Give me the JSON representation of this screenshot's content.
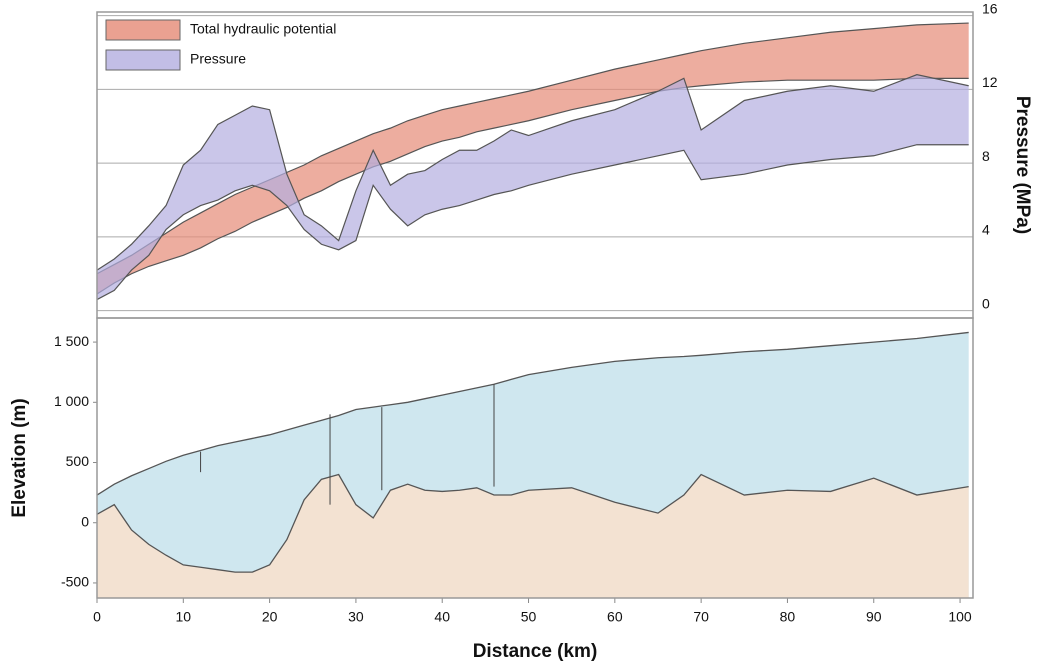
{
  "chart_data": [
    {
      "type": "range",
      "y2label": "Pressure (MPa)",
      "x": [
        0,
        2,
        4,
        6,
        8,
        10,
        12,
        14,
        16,
        18,
        20,
        22,
        24,
        26,
        28,
        30,
        32,
        34,
        36,
        38,
        40,
        42,
        44,
        46,
        48,
        50,
        55,
        60,
        65,
        68,
        70,
        75,
        80,
        85,
        90,
        95,
        101
      ],
      "xlim": [
        0,
        101.5
      ],
      "y2lim": [
        -0.4,
        16.2
      ],
      "y2ticks": [
        0,
        4,
        8,
        12,
        16
      ],
      "grid": true,
      "legend": "top-left",
      "series": [
        {
          "name": "Total hydraulic potential",
          "color": "#e58a76",
          "axis": "y2",
          "high": [
            2.0,
            2.5,
            3.0,
            3.6,
            4.2,
            4.8,
            5.3,
            5.8,
            6.3,
            6.7,
            7.1,
            7.5,
            7.9,
            8.4,
            8.8,
            9.2,
            9.6,
            9.9,
            10.3,
            10.6,
            10.9,
            11.1,
            11.3,
            11.5,
            11.7,
            11.9,
            12.5,
            13.1,
            13.6,
            13.9,
            14.1,
            14.5,
            14.8,
            15.1,
            15.3,
            15.5,
            15.6
          ],
          "low": [
            0.9,
            1.5,
            2.0,
            2.4,
            2.7,
            3.0,
            3.4,
            3.9,
            4.3,
            4.8,
            5.2,
            5.6,
            6.1,
            6.5,
            7.0,
            7.4,
            7.8,
            8.1,
            8.5,
            8.9,
            9.2,
            9.4,
            9.7,
            9.9,
            10.1,
            10.3,
            10.9,
            11.4,
            11.9,
            12.1,
            12.2,
            12.4,
            12.5,
            12.5,
            12.5,
            12.6,
            12.6
          ]
        },
        {
          "name": "Pressure",
          "color": "#b3aee0",
          "axis": "y2",
          "high": [
            2.2,
            2.8,
            3.6,
            4.6,
            5.7,
            7.9,
            8.7,
            10.1,
            10.6,
            11.1,
            10.9,
            7.4,
            5.2,
            4.6,
            3.8,
            6.5,
            8.7,
            6.8,
            7.4,
            7.6,
            8.2,
            8.7,
            8.7,
            9.2,
            9.8,
            9.5,
            10.3,
            10.9,
            11.9,
            12.6,
            9.8,
            11.4,
            11.9,
            12.2,
            11.9,
            12.8,
            12.2
          ],
          "low": [
            0.6,
            1.1,
            2.2,
            3.0,
            4.4,
            5.2,
            5.7,
            6.0,
            6.5,
            6.8,
            6.5,
            5.7,
            4.4,
            3.6,
            3.3,
            3.8,
            6.8,
            5.5,
            4.6,
            5.2,
            5.5,
            5.7,
            6.0,
            6.3,
            6.5,
            6.8,
            7.4,
            7.9,
            8.4,
            8.7,
            7.1,
            7.4,
            7.9,
            8.2,
            8.4,
            9.0,
            9.0
          ]
        }
      ]
    },
    {
      "type": "area",
      "xlabel": "Distance (km)",
      "ylabel": "Elevation (m)",
      "x": [
        0,
        2,
        4,
        6,
        8,
        10,
        12,
        14,
        16,
        18,
        20,
        22,
        24,
        26,
        28,
        30,
        32,
        34,
        36,
        38,
        40,
        42,
        44,
        46,
        48,
        50,
        55,
        60,
        65,
        68,
        70,
        75,
        80,
        85,
        90,
        95,
        101
      ],
      "xlim": [
        0,
        101.5
      ],
      "xticks": [
        0,
        10,
        20,
        30,
        40,
        50,
        60,
        70,
        80,
        90,
        100
      ],
      "ylim": [
        -625,
        1700
      ],
      "yticks": [
        {
          "value": 1500,
          "label": "1 500"
        },
        {
          "value": 1000,
          "label": "1 000"
        },
        500,
        0,
        -500
      ],
      "series": [
        {
          "color": "#cfe7ef",
          "values": [
            230,
            320,
            390,
            450,
            510,
            560,
            600,
            640,
            670,
            700,
            730,
            770,
            810,
            850,
            890,
            940,
            960,
            980,
            1000,
            1030,
            1060,
            1090,
            1120,
            1150,
            1190,
            1230,
            1290,
            1340,
            1370,
            1380,
            1390,
            1420,
            1440,
            1470,
            1500,
            1530,
            1580
          ]
        },
        {
          "color": "#f3e2d2",
          "values": [
            70,
            150,
            -60,
            -180,
            -270,
            -350,
            -370,
            -390,
            -410,
            -410,
            -350,
            -140,
            190,
            360,
            400,
            150,
            40,
            270,
            320,
            270,
            260,
            270,
            290,
            230,
            230,
            270,
            290,
            170,
            80,
            230,
            400,
            230,
            270,
            260,
            370,
            230,
            300
          ]
        }
      ],
      "boreholes": [
        {
          "x": 12,
          "top": 590,
          "bottom": 420
        },
        {
          "x": 27,
          "top": 900,
          "bottom": 150
        },
        {
          "x": 33,
          "top": 960,
          "bottom": 270
        },
        {
          "x": 46,
          "top": 1150,
          "bottom": 300
        }
      ]
    }
  ]
}
